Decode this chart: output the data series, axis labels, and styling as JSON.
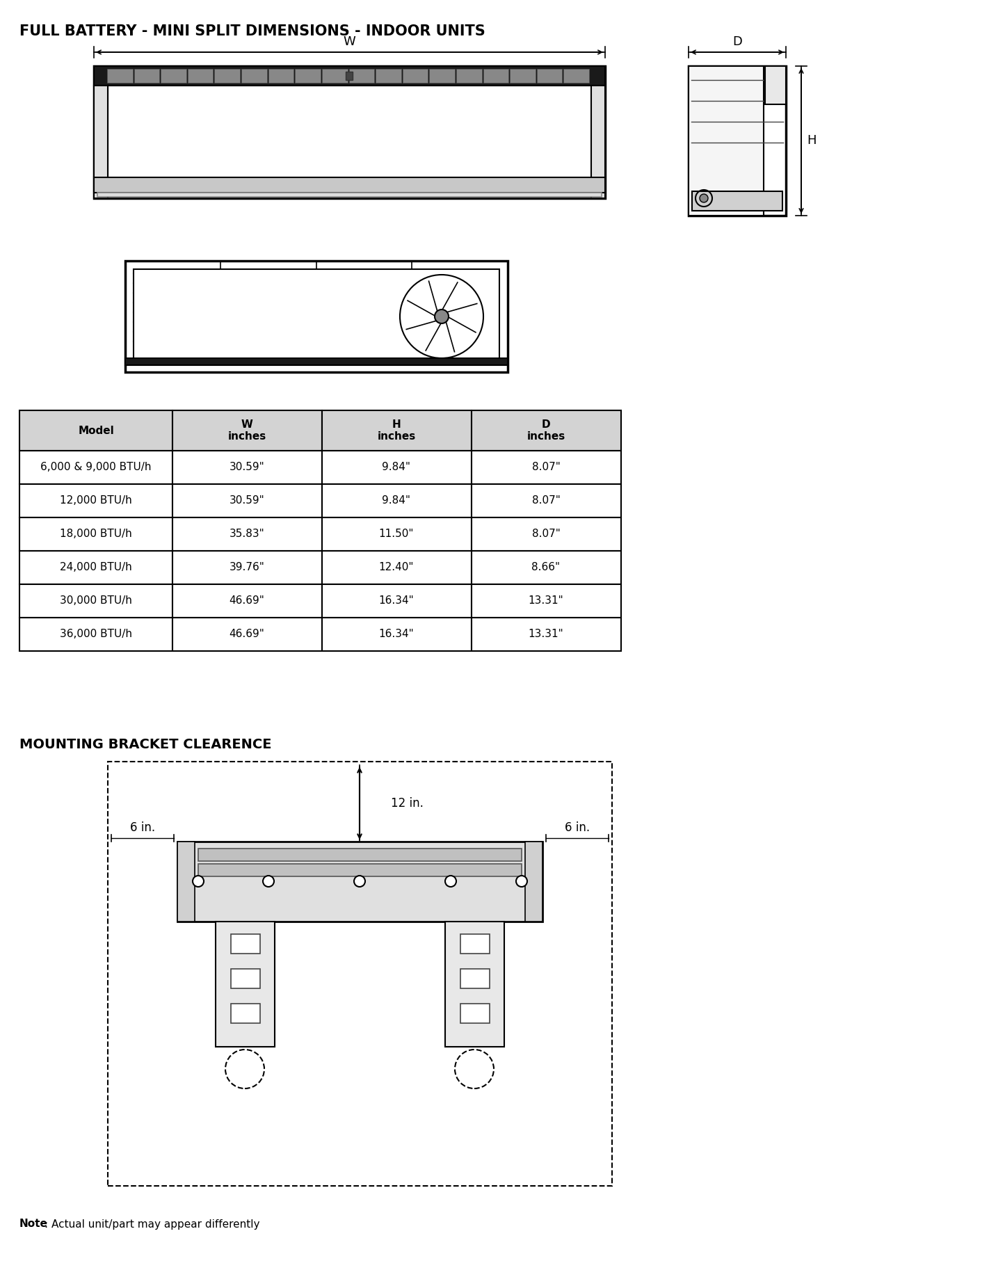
{
  "title": "FULL BATTERY - MINI SPLIT DIMENSIONS - INDOOR UNITS",
  "table_headers": [
    "Model",
    "W\ninches",
    "H\ninches",
    "D\ninches"
  ],
  "table_rows": [
    [
      "6,000 & 9,000 BTU/h",
      "30.59\"",
      "9.84\"",
      "8.07\""
    ],
    [
      "12,000 BTU/h",
      "30.59\"",
      "9.84\"",
      "8.07\""
    ],
    [
      "18,000 BTU/h",
      "35.83\"",
      "11.50\"",
      "8.07\""
    ],
    [
      "24,000 BTU/h",
      "39.76\"",
      "12.40\"",
      "8.66\""
    ],
    [
      "30,000 BTU/h",
      "46.69\"",
      "16.34\"",
      "13.31\""
    ],
    [
      "36,000 BTU/h",
      "46.69\"",
      "16.34\"",
      "13.31\""
    ]
  ],
  "section2_title": "MOUNTING BRACKET CLEARENCE",
  "note_bold": "Note",
  "note_rest": ": Actual unit/part may appear differently",
  "bg_color": "#ffffff",
  "header_bg": "#d3d3d3",
  "table_border": "#000000"
}
